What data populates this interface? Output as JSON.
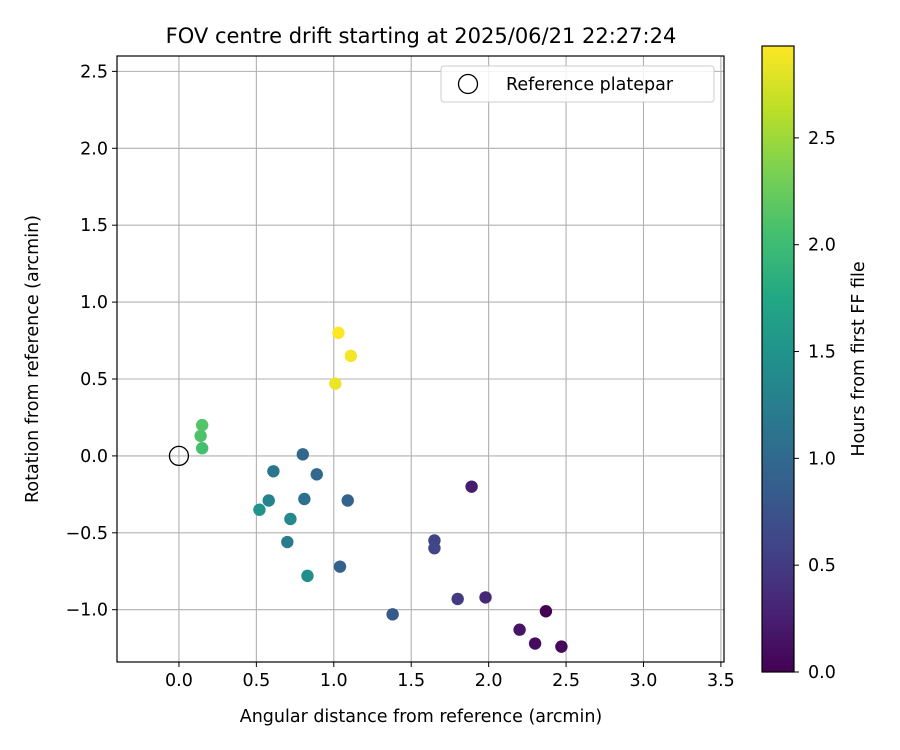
{
  "chart_data": {
    "type": "scatter",
    "title": "FOV centre drift starting at 2025/06/21 22:27:24",
    "xlabel": "Angular distance from reference (arcmin)",
    "ylabel": "Rotation from reference (arcmin)",
    "xlim": [
      -0.4,
      3.52
    ],
    "ylim": [
      -1.34,
      2.6
    ],
    "xticks": [
      "0.0",
      "0.5",
      "1.0",
      "1.5",
      "2.0",
      "2.5",
      "3.0",
      "3.5"
    ],
    "xtick_values": [
      0,
      0.5,
      1.0,
      1.5,
      2.0,
      2.5,
      3.0,
      3.5
    ],
    "yticks": [
      "−1.0",
      "−0.5",
      "0.0",
      "0.5",
      "1.0",
      "1.5",
      "2.0",
      "2.5"
    ],
    "ytick_values": [
      -1.0,
      -0.5,
      0.0,
      0.5,
      1.0,
      1.5,
      2.0,
      2.5
    ],
    "grid": true,
    "legend": {
      "position": "top-right",
      "entries": [
        "Reference platepar"
      ]
    },
    "reference_point": {
      "x": 0.0,
      "y": 0.0
    },
    "colorbar": {
      "label": "Hours from first FF file",
      "colormap": "viridis",
      "range": [
        0.0,
        2.93
      ],
      "ticks": [
        "0.0",
        "0.5",
        "1.0",
        "1.5",
        "2.0",
        "2.5"
      ],
      "tick_values": [
        0.0,
        0.5,
        1.0,
        1.5,
        2.0,
        2.5
      ]
    },
    "points": [
      {
        "x": 2.37,
        "y": -1.01,
        "hours": 0.0
      },
      {
        "x": 2.47,
        "y": -1.24,
        "hours": 0.05
      },
      {
        "x": 2.3,
        "y": -1.22,
        "hours": 0.1
      },
      {
        "x": 2.2,
        "y": -1.13,
        "hours": 0.17
      },
      {
        "x": 1.89,
        "y": -0.2,
        "hours": 0.23
      },
      {
        "x": 1.98,
        "y": -0.92,
        "hours": 0.33
      },
      {
        "x": 1.8,
        "y": -0.93,
        "hours": 0.5
      },
      {
        "x": 1.65,
        "y": -0.55,
        "hours": 0.58
      },
      {
        "x": 1.65,
        "y": -0.6,
        "hours": 0.62
      },
      {
        "x": 1.38,
        "y": -1.03,
        "hours": 0.83
      },
      {
        "x": 1.04,
        "y": -0.72,
        "hours": 0.9
      },
      {
        "x": 1.09,
        "y": -0.29,
        "hours": 0.93
      },
      {
        "x": 0.8,
        "y": 0.01,
        "hours": 0.97
      },
      {
        "x": 0.89,
        "y": -0.12,
        "hours": 1.0
      },
      {
        "x": 0.81,
        "y": -0.28,
        "hours": 1.07
      },
      {
        "x": 0.61,
        "y": -0.1,
        "hours": 1.15
      },
      {
        "x": 0.7,
        "y": -0.56,
        "hours": 1.22
      },
      {
        "x": 0.58,
        "y": -0.29,
        "hours": 1.3
      },
      {
        "x": 0.72,
        "y": -0.41,
        "hours": 1.37
      },
      {
        "x": 0.83,
        "y": -0.78,
        "hours": 1.43
      },
      {
        "x": 0.52,
        "y": -0.35,
        "hours": 1.5
      },
      {
        "x": 0.15,
        "y": 0.05,
        "hours": 2.05
      },
      {
        "x": 0.14,
        "y": 0.13,
        "hours": 2.1
      },
      {
        "x": 0.15,
        "y": 0.2,
        "hours": 2.13
      },
      {
        "x": 1.01,
        "y": 0.47,
        "hours": 2.85
      },
      {
        "x": 1.11,
        "y": 0.65,
        "hours": 2.88
      },
      {
        "x": 1.03,
        "y": 0.8,
        "hours": 2.93
      }
    ]
  }
}
